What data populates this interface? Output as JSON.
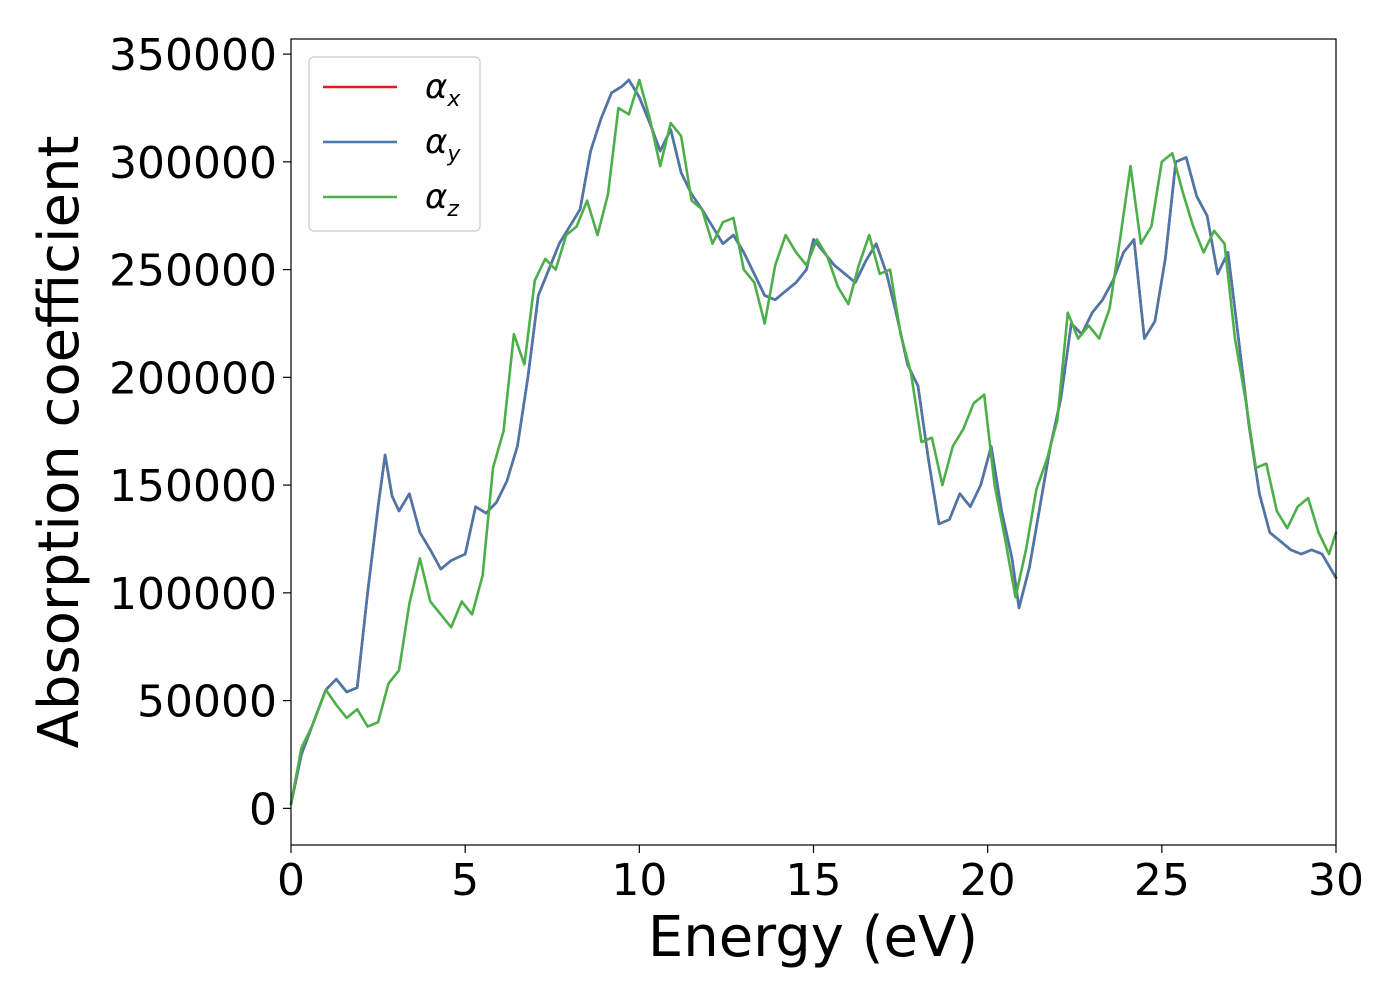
{
  "chart_data": {
    "type": "line",
    "xlabel": "Energy (eV)",
    "ylabel": "Absorption coefficient",
    "xlim": [
      0,
      30
    ],
    "ylim": [
      -17000,
      357000
    ],
    "x_ticks": [
      0,
      5,
      10,
      15,
      20,
      25,
      30
    ],
    "x_tick_labels": [
      "0",
      "5",
      "10",
      "15",
      "20",
      "25",
      "30"
    ],
    "y_ticks": [
      0,
      50000,
      100000,
      150000,
      200000,
      250000,
      300000,
      350000
    ],
    "y_tick_labels": [
      "0",
      "50000",
      "100000",
      "150000",
      "200000",
      "250000",
      "300000",
      "350000"
    ],
    "grid": false,
    "legend_position": "top-left",
    "series": [
      {
        "name": "α_x",
        "symbol": "α",
        "subscript": "x",
        "color": "#e41a1c",
        "x": [
          0,
          0.3,
          0.6,
          1.0,
          1.3,
          1.6,
          1.9,
          2.2,
          2.5,
          2.7,
          2.9,
          3.1,
          3.4,
          3.7,
          4.0,
          4.3,
          4.6,
          5.0,
          5.3,
          5.6,
          5.9,
          6.2,
          6.5,
          6.8,
          7.1,
          7.4,
          7.7,
          8.0,
          8.3,
          8.6,
          8.9,
          9.2,
          9.5,
          9.7,
          10.0,
          10.3,
          10.6,
          10.9,
          11.2,
          11.5,
          11.8,
          12.1,
          12.4,
          12.7,
          13.0,
          13.3,
          13.6,
          13.9,
          14.2,
          14.5,
          14.8,
          15.0,
          15.3,
          15.6,
          15.9,
          16.2,
          16.5,
          16.8,
          17.1,
          17.4,
          17.7,
          18.0,
          18.3,
          18.6,
          18.9,
          19.2,
          19.5,
          19.8,
          20.1,
          20.4,
          20.7,
          20.9,
          21.2,
          21.5,
          21.8,
          22.1,
          22.4,
          22.7,
          23.0,
          23.3,
          23.6,
          23.9,
          24.2,
          24.5,
          24.8,
          25.1,
          25.4,
          25.7,
          26.0,
          26.3,
          26.6,
          26.9,
          27.2,
          27.5,
          27.8,
          28.1,
          28.4,
          28.7,
          29.0,
          29.3,
          29.6,
          30.0
        ],
        "y": [
          2000,
          25000,
          38000,
          55000,
          60000,
          54000,
          56000,
          100000,
          140000,
          164000,
          145000,
          138000,
          146000,
          128000,
          120000,
          111000,
          115000,
          118000,
          140000,
          137000,
          142000,
          152000,
          168000,
          200000,
          238000,
          250000,
          262000,
          270000,
          278000,
          305000,
          320000,
          332000,
          335000,
          338000,
          330000,
          318000,
          305000,
          315000,
          295000,
          285000,
          278000,
          270000,
          262000,
          266000,
          258000,
          248000,
          238000,
          236000,
          240000,
          244000,
          250000,
          264000,
          258000,
          252000,
          248000,
          244000,
          254000,
          262000,
          248000,
          228000,
          206000,
          196000,
          162000,
          132000,
          134000,
          146000,
          140000,
          150000,
          168000,
          138000,
          116000,
          93000,
          112000,
          140000,
          168000,
          190000,
          225000,
          220000,
          230000,
          236000,
          245000,
          258000,
          264000,
          218000,
          226000,
          255000,
          300000,
          302000,
          284000,
          275000,
          248000,
          258000,
          218000,
          178000,
          146000,
          128000,
          124000,
          120000,
          118000,
          120000,
          118000,
          107000
        ]
      },
      {
        "name": "α_y",
        "symbol": "α",
        "subscript": "y",
        "color": "#4a78a9",
        "x": [
          0,
          0.3,
          0.6,
          1.0,
          1.3,
          1.6,
          1.9,
          2.2,
          2.5,
          2.7,
          2.9,
          3.1,
          3.4,
          3.7,
          4.0,
          4.3,
          4.6,
          5.0,
          5.3,
          5.6,
          5.9,
          6.2,
          6.5,
          6.8,
          7.1,
          7.4,
          7.7,
          8.0,
          8.3,
          8.6,
          8.9,
          9.2,
          9.5,
          9.7,
          10.0,
          10.3,
          10.6,
          10.9,
          11.2,
          11.5,
          11.8,
          12.1,
          12.4,
          12.7,
          13.0,
          13.3,
          13.6,
          13.9,
          14.2,
          14.5,
          14.8,
          15.0,
          15.3,
          15.6,
          15.9,
          16.2,
          16.5,
          16.8,
          17.1,
          17.4,
          17.7,
          18.0,
          18.3,
          18.6,
          18.9,
          19.2,
          19.5,
          19.8,
          20.1,
          20.4,
          20.7,
          20.9,
          21.2,
          21.5,
          21.8,
          22.1,
          22.4,
          22.7,
          23.0,
          23.3,
          23.6,
          23.9,
          24.2,
          24.5,
          24.8,
          25.1,
          25.4,
          25.7,
          26.0,
          26.3,
          26.6,
          26.9,
          27.2,
          27.5,
          27.8,
          28.1,
          28.4,
          28.7,
          29.0,
          29.3,
          29.6,
          30.0
        ],
        "y": [
          2000,
          25000,
          38000,
          55000,
          60000,
          54000,
          56000,
          100000,
          140000,
          164000,
          145000,
          138000,
          146000,
          128000,
          120000,
          111000,
          115000,
          118000,
          140000,
          137000,
          142000,
          152000,
          168000,
          200000,
          238000,
          250000,
          262000,
          270000,
          278000,
          305000,
          320000,
          332000,
          335000,
          338000,
          330000,
          318000,
          305000,
          315000,
          295000,
          285000,
          278000,
          270000,
          262000,
          266000,
          258000,
          248000,
          238000,
          236000,
          240000,
          244000,
          250000,
          264000,
          258000,
          252000,
          248000,
          244000,
          254000,
          262000,
          248000,
          228000,
          206000,
          196000,
          162000,
          132000,
          134000,
          146000,
          140000,
          150000,
          168000,
          138000,
          116000,
          93000,
          112000,
          140000,
          168000,
          190000,
          225000,
          220000,
          230000,
          236000,
          245000,
          258000,
          264000,
          218000,
          226000,
          255000,
          300000,
          302000,
          284000,
          275000,
          248000,
          258000,
          218000,
          178000,
          146000,
          128000,
          124000,
          120000,
          118000,
          120000,
          118000,
          107000
        ]
      },
      {
        "name": "α_z",
        "symbol": "α",
        "subscript": "z",
        "color": "#4daf4a",
        "x": [
          0,
          0.3,
          0.6,
          1.0,
          1.3,
          1.6,
          1.9,
          2.2,
          2.5,
          2.8,
          3.1,
          3.4,
          3.7,
          4.0,
          4.3,
          4.6,
          4.9,
          5.2,
          5.5,
          5.8,
          6.1,
          6.4,
          6.7,
          7.0,
          7.3,
          7.6,
          7.9,
          8.2,
          8.5,
          8.8,
          9.1,
          9.4,
          9.7,
          10.0,
          10.3,
          10.6,
          10.9,
          11.2,
          11.5,
          11.8,
          12.1,
          12.4,
          12.7,
          13.0,
          13.3,
          13.6,
          13.9,
          14.2,
          14.5,
          14.8,
          15.1,
          15.4,
          15.7,
          16.0,
          16.3,
          16.6,
          16.9,
          17.2,
          17.5,
          17.8,
          18.1,
          18.4,
          18.7,
          19.0,
          19.3,
          19.6,
          19.9,
          20.2,
          20.5,
          20.8,
          21.1,
          21.4,
          21.7,
          22.0,
          22.3,
          22.6,
          22.9,
          23.2,
          23.5,
          23.8,
          24.1,
          24.4,
          24.7,
          25.0,
          25.3,
          25.6,
          25.9,
          26.2,
          26.5,
          26.8,
          27.1,
          27.4,
          27.7,
          28.0,
          28.3,
          28.6,
          28.9,
          29.2,
          29.5,
          29.8,
          30.0
        ],
        "y": [
          2000,
          28000,
          38000,
          55000,
          48000,
          42000,
          46000,
          38000,
          40000,
          58000,
          64000,
          95000,
          116000,
          96000,
          90000,
          84000,
          96000,
          90000,
          108000,
          158000,
          175000,
          220000,
          206000,
          245000,
          255000,
          250000,
          266000,
          270000,
          282000,
          266000,
          285000,
          325000,
          322000,
          338000,
          320000,
          298000,
          318000,
          312000,
          282000,
          278000,
          262000,
          272000,
          274000,
          250000,
          244000,
          225000,
          252000,
          266000,
          258000,
          252000,
          264000,
          256000,
          242000,
          234000,
          252000,
          266000,
          248000,
          250000,
          220000,
          202000,
          170000,
          172000,
          150000,
          168000,
          176000,
          188000,
          192000,
          150000,
          125000,
          98000,
          120000,
          148000,
          162000,
          180000,
          230000,
          218000,
          224000,
          218000,
          232000,
          264000,
          298000,
          262000,
          270000,
          300000,
          304000,
          286000,
          270000,
          258000,
          268000,
          262000,
          218000,
          190000,
          158000,
          160000,
          138000,
          130000,
          140000,
          144000,
          128000,
          118000,
          128000
        ]
      }
    ]
  }
}
